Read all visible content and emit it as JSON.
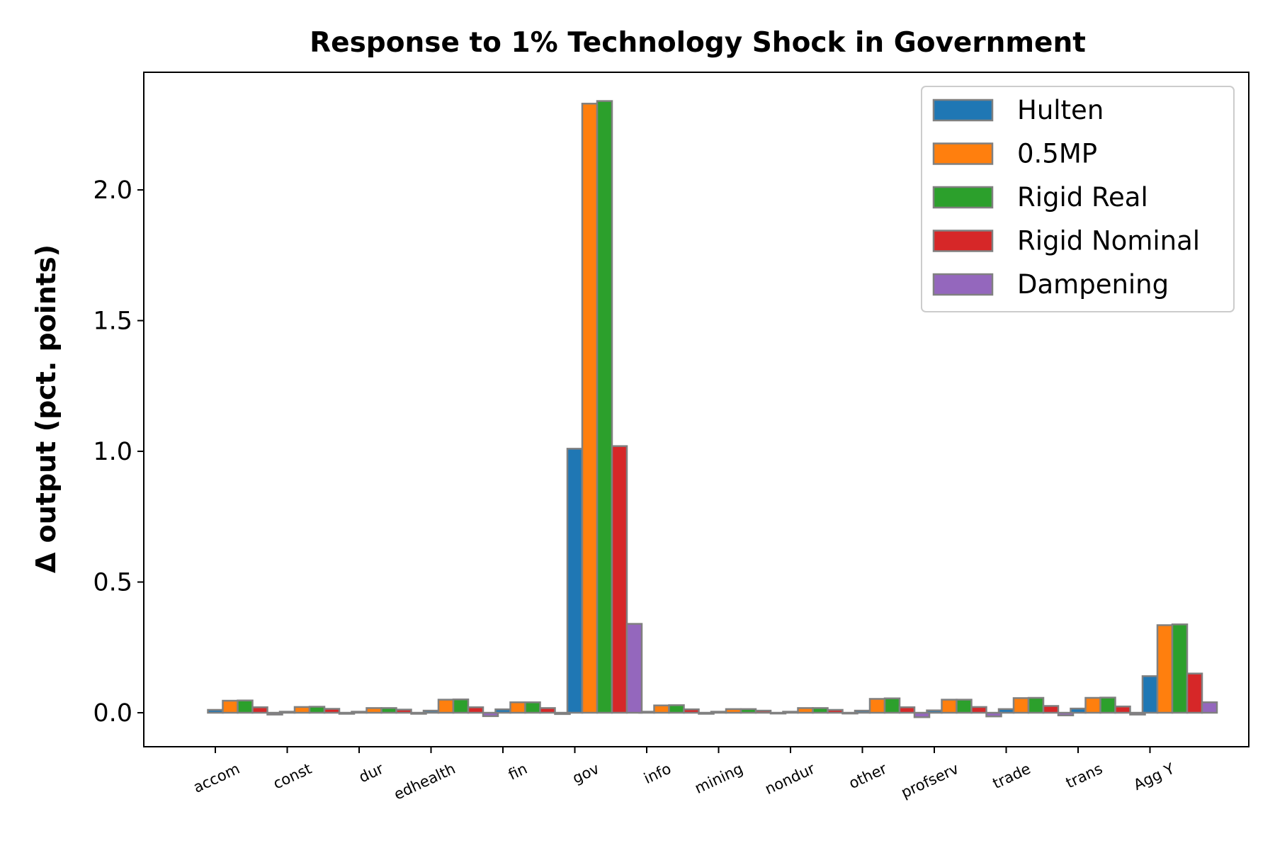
{
  "chart_data": {
    "type": "bar",
    "title": "Response to 1% Technology Shock in Government",
    "xlabel": "",
    "ylabel": "Δ output (pct. points)",
    "ylim": [
      -0.13,
      2.45
    ],
    "yticks": [
      0.0,
      0.5,
      1.0,
      1.5,
      2.0
    ],
    "ytick_labels": [
      "0.0",
      "0.5",
      "1.0",
      "1.5",
      "2.0"
    ],
    "grid": false,
    "legend_position": "top-right",
    "bar_edge_color": "#808080",
    "categories": [
      "accom",
      "const",
      "dur",
      "edhealth",
      "fin",
      "gov",
      "info",
      "mining",
      "nondur",
      "other",
      "profserv",
      "trade",
      "trans",
      "Agg Y"
    ],
    "series": [
      {
        "name": "Hulten",
        "color": "#1f77b4",
        "values": [
          0.011,
          0.004,
          0.004,
          0.008,
          0.013,
          1.01,
          0.004,
          0.004,
          0.004,
          0.008,
          0.009,
          0.014,
          0.016,
          0.14
        ]
      },
      {
        "name": "0.5MP",
        "color": "#ff7f0e",
        "values": [
          0.046,
          0.022,
          0.018,
          0.05,
          0.04,
          2.33,
          0.028,
          0.014,
          0.018,
          0.053,
          0.05,
          0.056,
          0.057,
          0.335
        ]
      },
      {
        "name": "Rigid Real",
        "color": "#2ca02c",
        "values": [
          0.047,
          0.023,
          0.018,
          0.051,
          0.04,
          2.34,
          0.029,
          0.014,
          0.018,
          0.055,
          0.05,
          0.057,
          0.058,
          0.338
        ]
      },
      {
        "name": "Rigid Nominal",
        "color": "#d62728",
        "values": [
          0.021,
          0.015,
          0.012,
          0.021,
          0.018,
          1.02,
          0.013,
          0.008,
          0.011,
          0.021,
          0.022,
          0.026,
          0.024,
          0.15
        ]
      },
      {
        "name": "Dampening",
        "color": "#9467bd",
        "values": [
          -0.007,
          -0.004,
          -0.004,
          -0.013,
          -0.005,
          0.34,
          -0.004,
          -0.003,
          -0.003,
          -0.017,
          -0.014,
          -0.01,
          -0.007,
          0.04
        ]
      }
    ]
  }
}
